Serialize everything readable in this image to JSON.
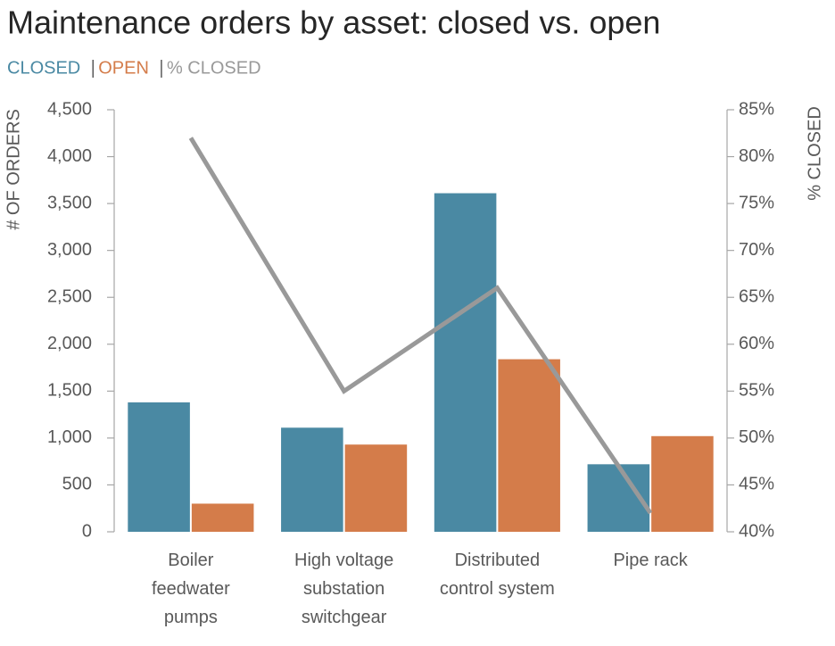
{
  "chart_data": {
    "type": "bar_line",
    "title": "Maintenance orders by asset: closed vs. open",
    "y_label": "# OF ORDERS",
    "y2_label": "% CLOSED",
    "categories": [
      "Boiler\nfeedwater\npumps",
      "High voltage\nsubstation\nswitchgear",
      "Distributed\ncontrol system",
      "Pipe rack"
    ],
    "series": [
      {
        "name": "CLOSED",
        "color": "#4a89a3",
        "type": "bar",
        "values": [
          1380,
          1110,
          3610,
          720
        ]
      },
      {
        "name": "OPEN",
        "color": "#d47c4a",
        "type": "bar",
        "values": [
          300,
          930,
          1840,
          1020
        ]
      },
      {
        "name": "% CLOSED",
        "color": "#999999",
        "type": "line",
        "axis": "y2",
        "values": [
          82,
          55,
          66,
          42
        ]
      }
    ],
    "ylim": [
      0,
      4500
    ],
    "yticks": [
      0,
      500,
      {
        "value": 1000,
        "label": "1,000"
      },
      {
        "value": 1500,
        "label": "1,500"
      },
      {
        "value": 2000,
        "label": "2,000"
      },
      {
        "value": 2500,
        "label": "2,500"
      },
      {
        "value": 3000,
        "label": "3,000"
      },
      {
        "value": 3500,
        "label": "3,500"
      },
      {
        "value": 4000,
        "label": "4,000"
      },
      {
        "value": 4500,
        "label": "4,500"
      }
    ],
    "y2lim": [
      40,
      85
    ],
    "y2ticks": [
      {
        "value": 40,
        "label": "40%"
      },
      {
        "value": 45,
        "label": "45%"
      },
      {
        "value": 50,
        "label": "50%"
      },
      {
        "value": 55,
        "label": "55%"
      },
      {
        "value": 60,
        "label": "60%"
      },
      {
        "value": 65,
        "label": "65%"
      },
      {
        "value": 70,
        "label": "70%"
      },
      {
        "value": 75,
        "label": "75%"
      },
      {
        "value": 80,
        "label": "80%"
      },
      {
        "value": 85,
        "label": "85%"
      }
    ]
  }
}
